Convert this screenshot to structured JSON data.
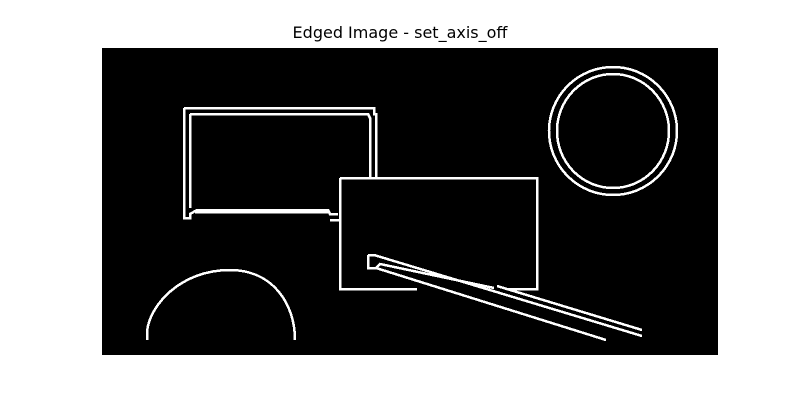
{
  "figure": {
    "title": "Edged Image - set_axis_off",
    "background_color": "#000000",
    "edge_color": "#ffffff",
    "axis_visible": false
  }
}
